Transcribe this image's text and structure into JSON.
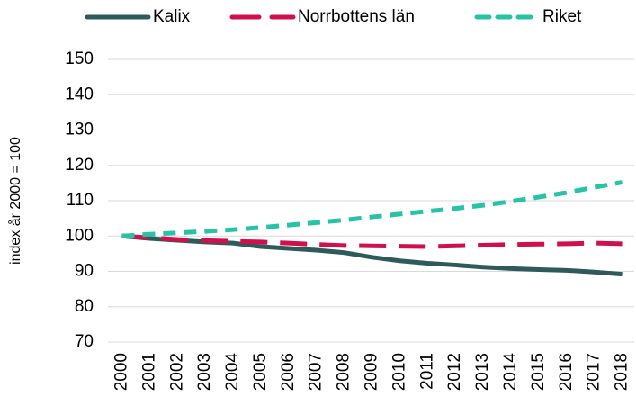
{
  "chart_data": {
    "type": "line",
    "y_label": "index år 2000 = 100",
    "categories": [
      "2000",
      "2001",
      "2002",
      "2003",
      "2004",
      "2005",
      "2006",
      "2007",
      "2008",
      "2009",
      "2010",
      "2011",
      "2012",
      "2013",
      "2014",
      "2015",
      "2016",
      "2017",
      "2018"
    ],
    "series": [
      {
        "name": "Kalix",
        "color": "#2e5a5c",
        "line_style": "solid",
        "values": [
          100,
          99.3,
          98.8,
          98.3,
          98,
          97,
          96.5,
          96,
          95.3,
          94,
          93,
          92.3,
          91.8,
          91.2,
          90.8,
          90.5,
          90.3,
          89.8,
          89.2
        ]
      },
      {
        "name": "Norrbottens län",
        "color": "#d0104c",
        "line_style": "long-dash",
        "values": [
          100,
          99.5,
          99,
          98.7,
          98.5,
          98.3,
          98,
          97.6,
          97.3,
          97.2,
          97.1,
          97,
          97.2,
          97.4,
          97.6,
          97.7,
          97.8,
          98,
          97.8
        ]
      },
      {
        "name": "Riket",
        "color": "#27c3a6",
        "line_style": "short-dash",
        "values": [
          100,
          100.5,
          100.9,
          101.3,
          101.8,
          102.4,
          103.1,
          103.8,
          104.5,
          105.4,
          106.2,
          107,
          107.8,
          108.7,
          109.8,
          111,
          112.3,
          113.8,
          115.2
        ]
      }
    ],
    "ylim": [
      70,
      150
    ],
    "yticks": [
      70,
      80,
      90,
      100,
      110,
      120,
      130,
      140,
      150
    ],
    "grid": true,
    "legend": "top"
  }
}
